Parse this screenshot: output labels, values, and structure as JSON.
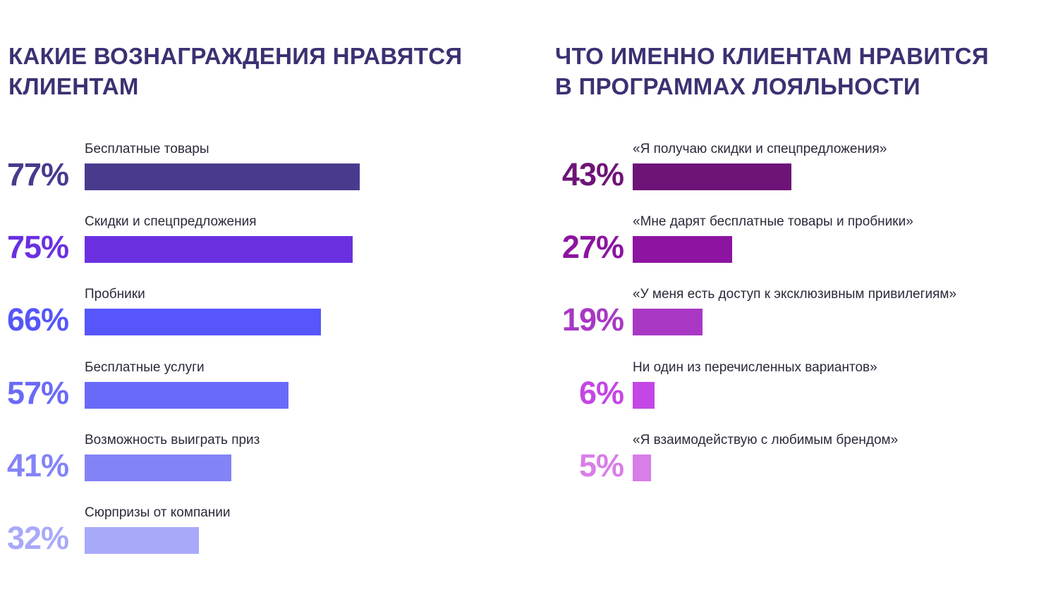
{
  "chart_data": [
    {
      "type": "bar",
      "orientation": "horizontal",
      "title": "КАКИЕ ВОЗНАГРАЖДЕНИЯ НРАВЯТСЯ\nКЛИЕНТАМ",
      "categories": [
        "Бесплатные товары",
        "Скидки и спецпредложения",
        "Пробники",
        "Бесплатные услуги",
        "Возможность выиграть приз",
        "Сюрпризы от компании"
      ],
      "values": [
        77,
        75,
        66,
        57,
        41,
        32
      ],
      "value_labels": [
        "77%",
        "75%",
        "66%",
        "57%",
        "41%",
        "32%"
      ],
      "colors": [
        "#4a3a8e",
        "#6a30e0",
        "#5656fa",
        "#6a6af8",
        "#8383f8",
        "#a9a9fa"
      ],
      "unit": "%",
      "xlim": [
        0,
        100
      ],
      "grid": false,
      "legend": "none"
    },
    {
      "type": "bar",
      "orientation": "horizontal",
      "title": "ЧТО ИМЕННО КЛИЕНТАМ НРАВИТСЯ\nВ ПРОГРАММАХ ЛОЯЛЬНОСТИ",
      "categories": [
        "«Я получаю скидки и спецпредложения»",
        "«Мне дарят бесплатные товары и пробники»",
        "«У меня есть доступ к эксклюзивным привилегиям»",
        "Ни один из перечисленных вариантов»",
        "«Я взаимодействую с любимым брендом»"
      ],
      "values": [
        43,
        27,
        19,
        6,
        5
      ],
      "value_labels": [
        "43%",
        "27%",
        "19%",
        "6%",
        "5%"
      ],
      "colors": [
        "#6e1478",
        "#8c14a0",
        "#a838c4",
        "#c446e4",
        "#d87ee8"
      ],
      "unit": "%",
      "xlim": [
        0,
        100
      ],
      "grid": false,
      "legend": "none"
    }
  ]
}
